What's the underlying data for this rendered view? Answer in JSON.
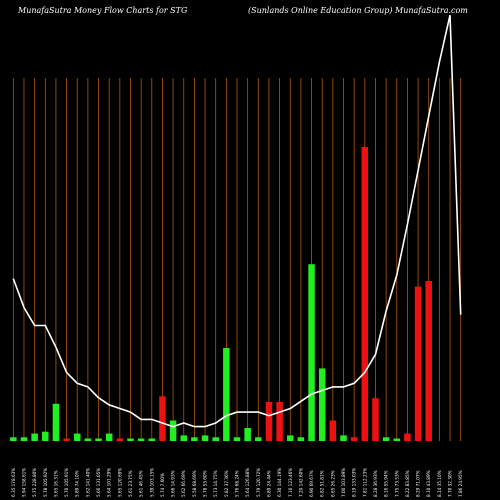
{
  "chart_data": {
    "type": "bar",
    "title_left": "MunafaSutra  Money Flow  Charts for STG",
    "title_right": "(Sunlands Online    Education  Group) MunafaSutra.com",
    "colors": {
      "background": "#000000",
      "grid": "#b35900",
      "up": "#22ee22",
      "down": "#ee1111",
      "price_line": "#ffffff"
    },
    "grid": true,
    "categories": [
      "Fri 17 Jan 2025",
      "Thu 16 Jan 2025",
      "Wed 15 Jan 2025",
      "Tue 14 Jan 2025",
      "Mon 13 Jan 2025",
      "Fri 10 Jan 2025",
      "Wed 08 Jan 2025",
      "Tue 07 Jan 2025",
      "Mon 06 Jan 2025",
      "Fri 03 Jan 2025",
      "Thu 02 Jan 2025",
      "Tue 31 Dec 2024",
      "Mon 30 Dec 2024",
      "Fri 27 Dec 2024",
      "Thu 26 Dec 2024",
      "Tue 24 Dec 2024",
      "Mon 23 Dec 2024",
      "Fri 20 Dec 2024",
      "Thu 19 Dec 2024",
      "Wed 18 Dec 2024",
      "Tue 17 Dec 2024",
      "Mon 16 Dec 2024",
      "Fri 13 Dec 2024",
      "Thu 12 Dec 2024",
      "Wed 11 Dec 2024",
      "Tue 10 Dec 2024",
      "Mon 09 Dec 2024",
      "Fri 06 Dec 2024",
      "Thu 05 Dec 2024",
      "Wed 04 Dec 2024",
      "Tue 03 Dec 2024",
      "Mon 02 Dec 2024",
      "Fri 29 Nov 2024",
      "Wed 27 Nov 2024",
      "Tue 26 Nov 2024",
      "Mon 25 Nov 2024",
      "Fri 22 Nov 2024",
      "Thu 21 Nov 2024",
      "Wed 20 Nov 2024",
      "Tue 19 Nov 2024",
      "Mon 18 Nov 2024",
      "Fri 15 Nov 2024",
      "Thu 14 Nov 2024"
    ],
    "x_labels": [
      "6.35 178.63%",
      "5.94 158.61%",
      "5.75 228.80%",
      "5.78 105.92%",
      "5.65 16.31%",
      "5.70 105.91%",
      "5.89 74.10%",
      "5.62 141.40%",
      "5.66 131.05%",
      "5.64 101.29%",
      "5.65 120.69%",
      "5.61 23.75%",
      "5.61 46.45%",
      "5.39 103.15%",
      "5.74 7.60%",
      "5.66 14.93%",
      "5.62 66.69%",
      "5.58 68.69%",
      "5.78 53.60%",
      "5.73 14.75%",
      "5.82 37.36%",
      "5.76 68.24%",
      "5.64 126.88%",
      "5.79 120.72%",
      "6.89 24.44%",
      "6.30 144.19%",
      "7.16 123.46%",
      "7.20 142.60%",
      "6.90 69.67%",
      "6.82 51.81%",
      "6.65 26.23%",
      "7.00 103.89%",
      "8.19 133.03%",
      "7.81 112.23%",
      "8.28 36.93%",
      "8.16 55.94%",
      "7.75 73.53%",
      "8.22 83.85%",
      "8.29 71.07%",
      "8.10 43.89%",
      "8.14 35.10%",
      "7.70 32.30%",
      "7.86 24.95%"
    ],
    "values": [
      2,
      2,
      4,
      5,
      20,
      1,
      4,
      1,
      1,
      4,
      1,
      1,
      1,
      1,
      24,
      11,
      3,
      2,
      3,
      2,
      50,
      2,
      7,
      2,
      21,
      21,
      3,
      2,
      95,
      39,
      11,
      3,
      2,
      158,
      23,
      2,
      1,
      4,
      83,
      86,
      0,
      0,
      0
    ],
    "directions": [
      "up",
      "up",
      "up",
      "up",
      "up",
      "down",
      "up",
      "up",
      "up",
      "up",
      "down",
      "up",
      "up",
      "up",
      "down",
      "up",
      "up",
      "up",
      "up",
      "up",
      "up",
      "up",
      "up",
      "up",
      "down",
      "down",
      "up",
      "up",
      "up",
      "up",
      "down",
      "up",
      "down",
      "down",
      "down",
      "up",
      "up",
      "down",
      "down",
      "down",
      "up",
      "up",
      "up"
    ],
    "price_line": [
      10.5,
      9.7,
      9.2,
      9.2,
      8.6,
      7.9,
      7.6,
      7.5,
      7.2,
      7.0,
      6.9,
      6.8,
      6.6,
      6.6,
      6.5,
      6.4,
      6.5,
      6.4,
      6.4,
      6.5,
      6.7,
      6.8,
      6.8,
      6.8,
      6.7,
      6.8,
      6.9,
      7.1,
      7.3,
      7.4,
      7.5,
      7.5,
      7.6,
      7.9,
      8.4,
      9.6,
      10.6,
      12.0,
      13.5,
      15.0,
      16.5,
      17.8,
      9.5
    ]
  }
}
